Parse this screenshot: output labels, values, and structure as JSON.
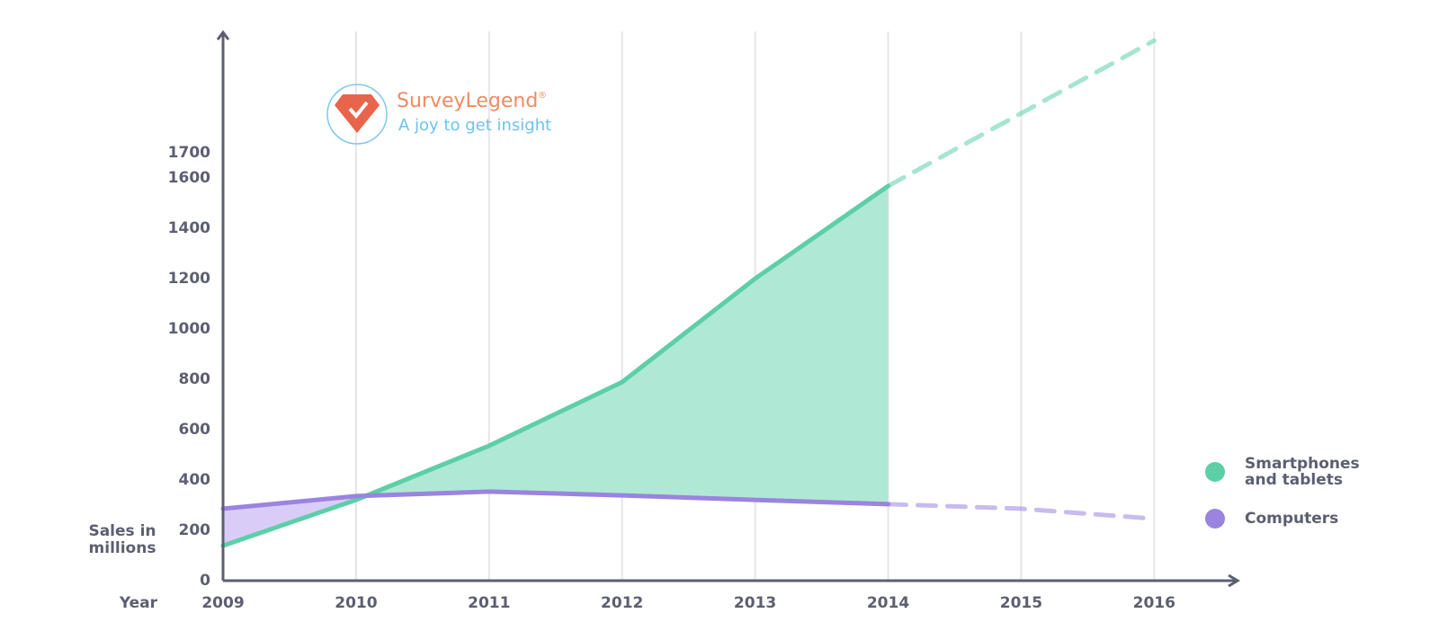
{
  "chart_data": {
    "type": "line",
    "y_label": "Sales in millions",
    "x_label": "Year",
    "x": [
      2009,
      2010,
      2011,
      2012,
      2013,
      2014,
      2015,
      2016
    ],
    "forecast_from": 2014,
    "series": [
      {
        "name": "Smartphones and tablets",
        "color": "#5ccfa6",
        "values": [
          139,
          321,
          536,
          789,
          1200,
          1568,
          1857,
          2146
        ]
      },
      {
        "name": "Computers",
        "color": "#9b83e0",
        "values": [
          286,
          336,
          354,
          339,
          321,
          304,
          286,
          246
        ]
      }
    ],
    "fill_between": true,
    "xlim": [
      2009,
      2016.6
    ],
    "xticks": [
      2009,
      2010,
      2011,
      2012,
      2013,
      2014,
      2015,
      2016
    ],
    "ylim": [
      0,
      2200
    ],
    "yticks": [
      0,
      200,
      400,
      600,
      800,
      1000,
      1200,
      1400,
      1600,
      1700
    ],
    "grid": true
  },
  "logo": {
    "name": "SurveyLegend",
    "mark": "®",
    "tagline": "A joy to get insight"
  }
}
